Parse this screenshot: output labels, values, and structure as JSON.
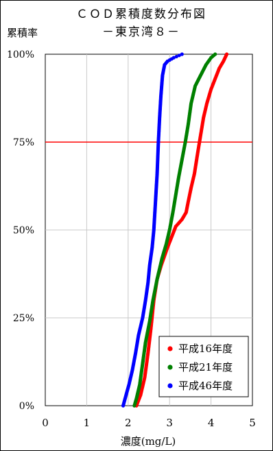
{
  "chart_data": {
    "type": "scatter",
    "title": "ＣＯＤ累積度数分布図",
    "subtitle": "－東京湾８－",
    "xlabel": "濃度(mg/L)",
    "ylabel": "累積率",
    "xlim": [
      0,
      5
    ],
    "ylim": [
      0,
      100
    ],
    "x_ticks": [
      "0",
      "1",
      "2",
      "3",
      "4",
      "5"
    ],
    "y_ticks": [
      "0%",
      "25%",
      "50%",
      "75%",
      "100%"
    ],
    "grid": true,
    "legend_position": "bottom-right",
    "reference_line": {
      "y": 75,
      "color": "#ff0000"
    },
    "series": [
      {
        "name": "平成16年度",
        "color": "#ff0000",
        "style": "points",
        "points": [
          [
            2.2,
            0
          ],
          [
            2.3,
            3
          ],
          [
            2.4,
            8
          ],
          [
            2.48,
            15
          ],
          [
            2.55,
            22
          ],
          [
            2.62,
            30
          ],
          [
            2.7,
            36
          ],
          [
            2.8,
            40
          ],
          [
            2.95,
            45
          ],
          [
            3.05,
            48
          ],
          [
            3.15,
            51
          ],
          [
            3.3,
            53
          ],
          [
            3.4,
            55
          ],
          [
            3.45,
            58
          ],
          [
            3.52,
            62
          ],
          [
            3.6,
            66
          ],
          [
            3.68,
            72
          ],
          [
            3.75,
            77
          ],
          [
            3.82,
            82
          ],
          [
            3.9,
            86
          ],
          [
            4.0,
            90
          ],
          [
            4.1,
            93
          ],
          [
            4.2,
            96
          ],
          [
            4.3,
            98
          ],
          [
            4.38,
            100
          ]
        ]
      },
      {
        "name": "平成21年度",
        "color": "#008000",
        "style": "points",
        "points": [
          [
            2.15,
            0
          ],
          [
            2.2,
            2
          ],
          [
            2.28,
            6
          ],
          [
            2.35,
            12
          ],
          [
            2.42,
            18
          ],
          [
            2.52,
            24
          ],
          [
            2.6,
            30
          ],
          [
            2.7,
            36
          ],
          [
            2.82,
            42
          ],
          [
            2.92,
            46
          ],
          [
            3.0,
            50
          ],
          [
            3.08,
            55
          ],
          [
            3.15,
            60
          ],
          [
            3.22,
            65
          ],
          [
            3.3,
            70
          ],
          [
            3.38,
            75
          ],
          [
            3.45,
            80
          ],
          [
            3.52,
            86
          ],
          [
            3.62,
            91
          ],
          [
            3.75,
            94
          ],
          [
            3.88,
            97
          ],
          [
            4.0,
            99
          ],
          [
            4.1,
            100
          ]
        ]
      },
      {
        "name": "平成46年度",
        "color": "#0000ff",
        "style": "points",
        "points": [
          [
            1.88,
            0
          ],
          [
            1.95,
            3
          ],
          [
            2.02,
            6
          ],
          [
            2.1,
            10
          ],
          [
            2.18,
            15
          ],
          [
            2.25,
            20
          ],
          [
            2.35,
            25
          ],
          [
            2.42,
            30
          ],
          [
            2.48,
            35
          ],
          [
            2.52,
            40
          ],
          [
            2.58,
            45
          ],
          [
            2.62,
            50
          ],
          [
            2.66,
            58
          ],
          [
            2.7,
            66
          ],
          [
            2.73,
            75
          ],
          [
            2.76,
            82
          ],
          [
            2.79,
            88
          ],
          [
            2.83,
            94
          ],
          [
            2.88,
            97
          ],
          [
            2.95,
            98
          ],
          [
            3.1,
            99
          ],
          [
            3.3,
            100
          ]
        ]
      }
    ]
  }
}
